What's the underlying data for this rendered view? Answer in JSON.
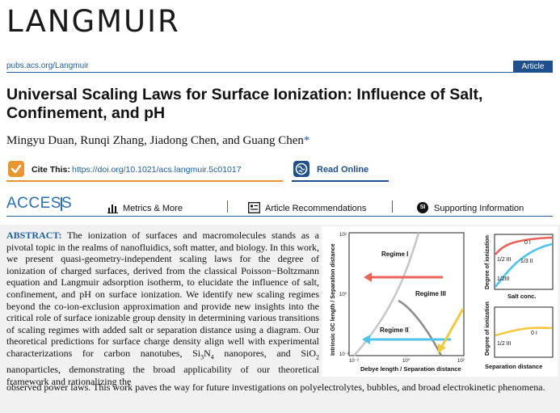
{
  "header": {
    "journal": "LANGMUIR",
    "url": "pubs.acs.org/Langmuir",
    "article_type": "Article"
  },
  "paper": {
    "title": "Universal Scaling Laws for Surface Ionization: Influence of Salt, Confinement, and pH",
    "authors": "Mingyu Duan, Runqi Zhang, Jiadong Chen, and Guang Chen",
    "corresponding_mark": "*"
  },
  "actions": {
    "cite_label": "Cite This:",
    "cite_doi": "https://doi.org/10.1021/acs.langmuir.5c01017",
    "read_online": "Read Online"
  },
  "access": {
    "label": "ACCESS",
    "tabs": [
      "Metrics & More",
      "Article Recommendations",
      "Supporting Information"
    ],
    "si_badge": "SI"
  },
  "abstract": {
    "label": "ABSTRACT:",
    "text_part1": "The ionization of surfaces and macromolecules stands as a pivotal topic in the realms of nanofluidics, soft matter, and biology. In this work, we present quasi-geometry-independent scaling laws for the degree of ionization of charged surfaces, derived from the classical Poisson−Boltzmann equation and Langmuir adsorption isotherm, to elucidate the influence of salt, confinement, and pH on surface ionization. We identify new scaling regimes beyond the co-ion-exclusion approximation and provide new insights into the critical role of surface ionizable group density in determining various transitions of scaling regimes with added salt or separation distance using a diagram. Our theoretical predictions for surface charge density align well with experimental characterizations for carbon nanotubes, Si",
    "si3n4_sub1": "3",
    "n_letter": "N",
    "si3n4_sub2": "4",
    "text_part2": " nanopores, and SiO",
    "sio2_sub": "2",
    "text_part3": " nanoparticles, demonstrating the broad applicability of our theoretical framework and rationalizing the",
    "text_cont": "observed power laws. This work paves the way for future investigations on polyelectrolytes, bubbles, and broad electrokinetic phenomena."
  },
  "toc_graphic": {
    "main_ylabel": "Intrinsic GC length / Separation distance",
    "main_xlabel": "Debye length / Separation distance",
    "main_yticks": [
      "10²",
      "10⁰",
      "10⁻²"
    ],
    "main_xticks": [
      "10⁻²",
      "10⁰",
      "10²"
    ],
    "regimes": [
      "Regime I",
      "Regime II",
      "Regime III"
    ],
    "top_ylabel": "Degree of ionization",
    "top_xlabel": "Salt conc.",
    "top_labels": [
      "0 I",
      "1/2 III",
      "1/3 II",
      "1/2III"
    ],
    "bottom_ylabel": "Degree of ionization",
    "bottom_xlabel": "Separation distance",
    "bottom_labels": [
      "0 I",
      "1/2 III"
    ],
    "colors": {
      "red": "#e8635a",
      "blue": "#4fc3e8",
      "yellow": "#f5c842",
      "gray": "#8c8c8c",
      "lightgray": "#c8c8c8"
    }
  }
}
